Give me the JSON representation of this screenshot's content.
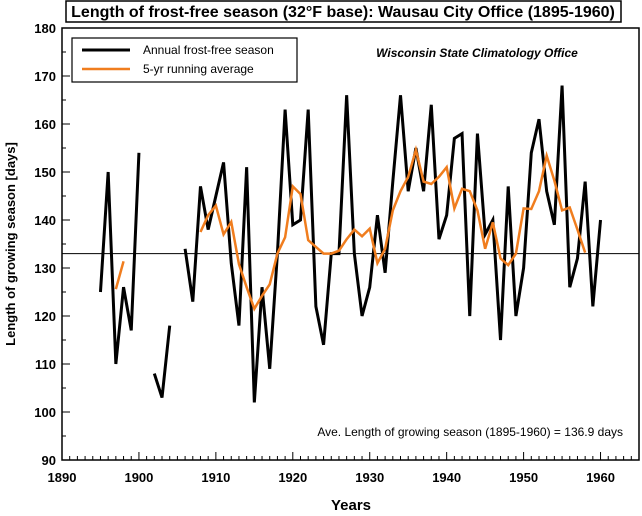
{
  "chart_data": {
    "type": "line",
    "title": "Length of frost-free season (32°F base): Wausau City Office (1895-1960)",
    "source": "Wisconsin State Climatology Office",
    "xlabel": "Years",
    "ylabel": "Length of growing season [days]",
    "xlim": [
      1890,
      1965
    ],
    "ylim": [
      90,
      180
    ],
    "x_ticks": [
      1890,
      1900,
      1910,
      1920,
      1930,
      1940,
      1950,
      1960
    ],
    "y_ticks": [
      90,
      100,
      110,
      120,
      130,
      140,
      150,
      160,
      170,
      180
    ],
    "x_tick_labels": [
      "1890",
      "1900",
      "1910",
      "1920",
      "1930",
      "1940",
      "1950",
      "1960"
    ],
    "y_tick_labels": [
      "90",
      "100",
      "110",
      "120",
      "130",
      "140",
      "150",
      "160",
      "170",
      "180"
    ],
    "grid": false,
    "legend_position": "top-left",
    "mean_line": 133,
    "annotation": "Ave. Length of growing season (1895-1960) = 136.9 days",
    "series": [
      {
        "name": "Annual frost-free season",
        "color": "#000000",
        "x": [
          1895,
          1896,
          1897,
          1898,
          1899,
          1900,
          1901,
          1902,
          1903,
          1904,
          1905,
          1906,
          1907,
          1908,
          1909,
          1910,
          1911,
          1912,
          1913,
          1914,
          1915,
          1916,
          1917,
          1918,
          1919,
          1920,
          1921,
          1922,
          1923,
          1924,
          1925,
          1926,
          1927,
          1928,
          1929,
          1930,
          1931,
          1932,
          1933,
          1934,
          1935,
          1936,
          1937,
          1938,
          1939,
          1940,
          1941,
          1942,
          1943,
          1944,
          1945,
          1946,
          1947,
          1948,
          1949,
          1950,
          1951,
          1952,
          1953,
          1954,
          1955,
          1956,
          1957,
          1958,
          1959,
          1960
        ],
        "values": [
          125,
          150,
          110,
          126,
          117,
          154,
          null,
          108,
          103,
          118,
          null,
          134,
          123,
          147,
          138,
          145,
          152,
          131,
          118,
          151,
          102,
          126,
          109,
          133,
          163,
          139,
          140,
          163,
          122,
          114,
          133,
          133,
          166,
          133,
          120,
          126,
          141,
          129,
          148,
          166,
          146,
          155,
          146,
          164,
          136,
          141,
          157,
          158,
          120,
          158,
          137,
          140,
          115,
          147,
          120,
          130,
          154,
          161,
          146,
          139,
          168,
          126,
          132,
          148,
          122,
          140
        ]
      },
      {
        "name": "5-yr running average",
        "color": "#f07d1e",
        "x": [
          1897,
          1898,
          1899,
          1900,
          1901,
          1902,
          1903,
          1904,
          1905,
          1906,
          1907,
          1908,
          1909,
          1910,
          1911,
          1912,
          1913,
          1914,
          1915,
          1916,
          1917,
          1918,
          1919,
          1920,
          1921,
          1922,
          1923,
          1924,
          1925,
          1926,
          1927,
          1928,
          1929,
          1930,
          1931,
          1932,
          1933,
          1934,
          1935,
          1936,
          1937,
          1938,
          1939,
          1940,
          1941,
          1942,
          1943,
          1944,
          1945,
          1946,
          1947,
          1948,
          1949,
          1950,
          1951,
          1952,
          1953,
          1954,
          1955,
          1956,
          1957,
          1958
        ],
        "values": [
          125.6,
          131.4,
          null,
          null,
          null,
          null,
          null,
          null,
          null,
          null,
          null,
          137.5,
          141.0,
          143.0,
          137.0,
          139.6,
          130.8,
          126.0,
          121.5,
          124.2,
          126.6,
          133.0,
          136.4,
          147.0,
          145.4,
          135.8,
          134.4,
          133.0,
          133.0,
          133.6,
          136.0,
          138.0,
          136.6,
          138.2,
          131.0,
          134.0,
          142.0,
          146.0,
          149.0,
          154.6,
          148.0,
          147.5,
          149.0,
          151.0,
          142.4,
          146.5,
          146.0,
          142.0,
          134.0,
          139.5,
          132.0,
          130.6,
          133.0,
          142.4,
          142.3,
          146.0,
          153.4,
          148.2,
          142.0,
          142.6,
          138.0,
          133.2
        ]
      }
    ]
  }
}
